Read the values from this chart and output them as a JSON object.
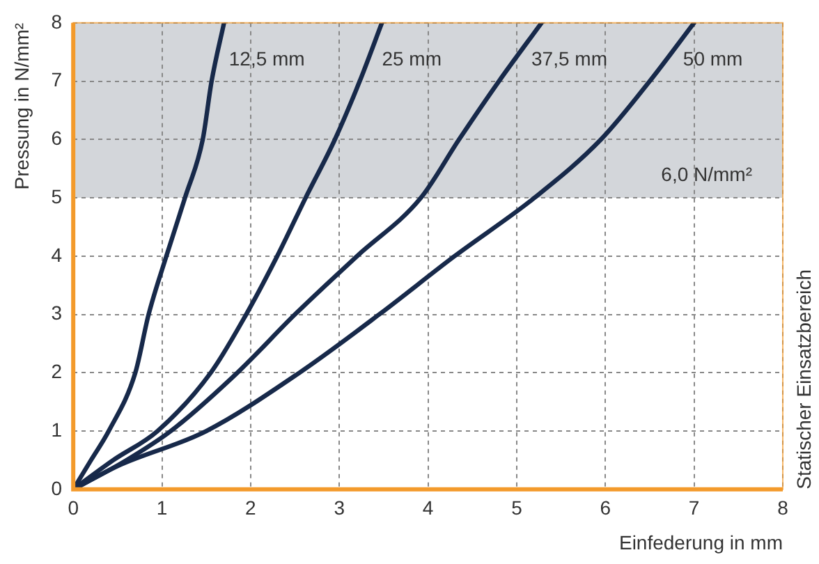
{
  "chart_data": {
    "type": "line",
    "xlabel": "Einfederung in mm",
    "ylabel": "Pressung in N/mm²",
    "xlim": [
      0,
      8
    ],
    "xticks": [
      0,
      1,
      2,
      3,
      4,
      5,
      6,
      7,
      8
    ],
    "ylim": [
      0,
      8
    ],
    "yticks": [
      0,
      1,
      2,
      3,
      4,
      5,
      6,
      7,
      8
    ],
    "grid": true,
    "legend": false,
    "marker": "none",
    "line_style": "solid",
    "series": [
      {
        "name": "12,5 mm",
        "color": "#17294a",
        "x": [
          0,
          0.2,
          0.4,
          0.7,
          0.85,
          1.05,
          1.26,
          1.46,
          1.56,
          1.7
        ],
        "values": [
          0,
          0.5,
          1,
          2,
          3,
          4,
          5,
          6,
          7,
          8
        ]
      },
      {
        "name": "25 mm",
        "color": "#17294a",
        "x": [
          0,
          0.45,
          0.95,
          1.55,
          1.95,
          2.3,
          2.62,
          2.95,
          3.23,
          3.48
        ],
        "values": [
          0,
          0.5,
          1,
          2,
          3,
          4,
          5,
          6,
          7,
          8
        ]
      },
      {
        "name": "37,5 mm",
        "color": "#17294a",
        "x": [
          0,
          0.6,
          1.1,
          1.85,
          2.5,
          3.2,
          3.92,
          4.35,
          4.8,
          5.28
        ],
        "values": [
          0,
          0.5,
          1,
          2,
          3,
          4,
          5,
          6,
          7,
          8
        ]
      },
      {
        "name": "50 mm",
        "color": "#17294a",
        "x": [
          0,
          0.5,
          1.5,
          2.55,
          3.45,
          4.3,
          5.2,
          5.95,
          6.5,
          7.0
        ],
        "values": [
          0,
          0.4,
          1,
          2,
          3,
          4,
          5,
          6,
          7,
          8
        ]
      }
    ],
    "bands": [
      {
        "axis": "y",
        "from": 5,
        "to": 8,
        "label": "6,0 N/mm²",
        "color": "#d3d6da"
      }
    ],
    "annotations": [
      "Statischer Einsatzbereich"
    ]
  }
}
